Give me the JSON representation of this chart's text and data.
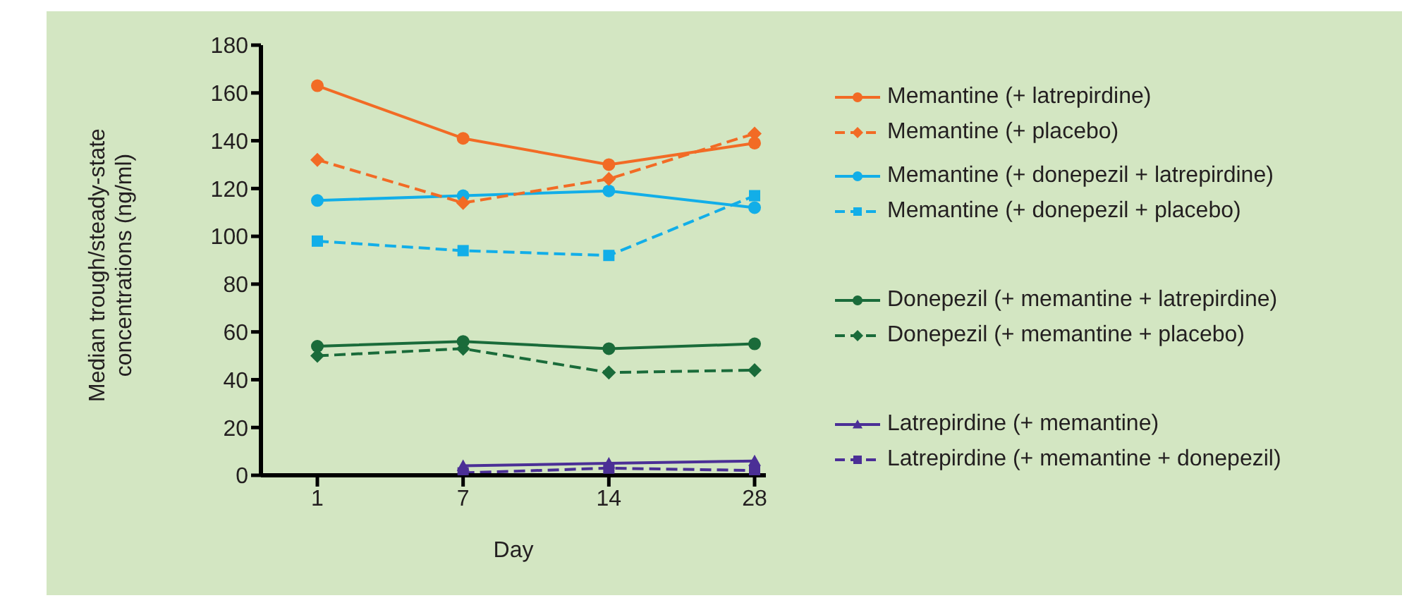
{
  "chart_data": {
    "type": "line",
    "xlabel": "Day",
    "ylabel": "Median trough/steady-state concentrations (ng/ml)",
    "categories": [
      "1",
      "7",
      "14",
      "28"
    ],
    "ylim": [
      0,
      180
    ],
    "yticks": [
      0,
      20,
      40,
      60,
      80,
      100,
      120,
      140,
      160,
      180
    ],
    "grid": false,
    "legend": "right",
    "series": [
      {
        "name": "Memantine (+ latrepirdine)",
        "color": "#f26b25",
        "marker": "circle",
        "line_style": "solid",
        "values": [
          163,
          141,
          130,
          139
        ]
      },
      {
        "name": "Memantine (+ placebo)",
        "color": "#f26b25",
        "marker": "diamond",
        "line_style": "dashed",
        "values": [
          132,
          114,
          124,
          143
        ]
      },
      {
        "name": "Memantine (+ donepezil + latrepirdine)",
        "color": "#12aee8",
        "marker": "circle",
        "line_style": "solid",
        "values": [
          115,
          117,
          119,
          112
        ]
      },
      {
        "name": "Memantine (+ donepezil + placebo)",
        "color": "#12aee8",
        "marker": "square",
        "line_style": "dashed",
        "values": [
          98,
          94,
          92,
          117
        ]
      },
      {
        "name": "Donepezil (+ memantine + latrepirdine)",
        "color": "#1a6b3a",
        "marker": "circle",
        "line_style": "solid",
        "values": [
          54,
          56,
          53,
          55
        ]
      },
      {
        "name": "Donepezil (+ memantine + placebo)",
        "color": "#1a6b3a",
        "marker": "diamond",
        "line_style": "dashed",
        "values": [
          50,
          53,
          43,
          44
        ]
      },
      {
        "name": "Latrepirdine (+ memantine)",
        "color": "#4b2f96",
        "marker": "triangle",
        "line_style": "solid",
        "values": [
          null,
          4,
          5,
          6
        ]
      },
      {
        "name": "Latrepirdine (+ memantine + donepezil)",
        "color": "#4b2f96",
        "marker": "square",
        "line_style": "dashed",
        "values": [
          null,
          1,
          3,
          2
        ]
      }
    ]
  }
}
